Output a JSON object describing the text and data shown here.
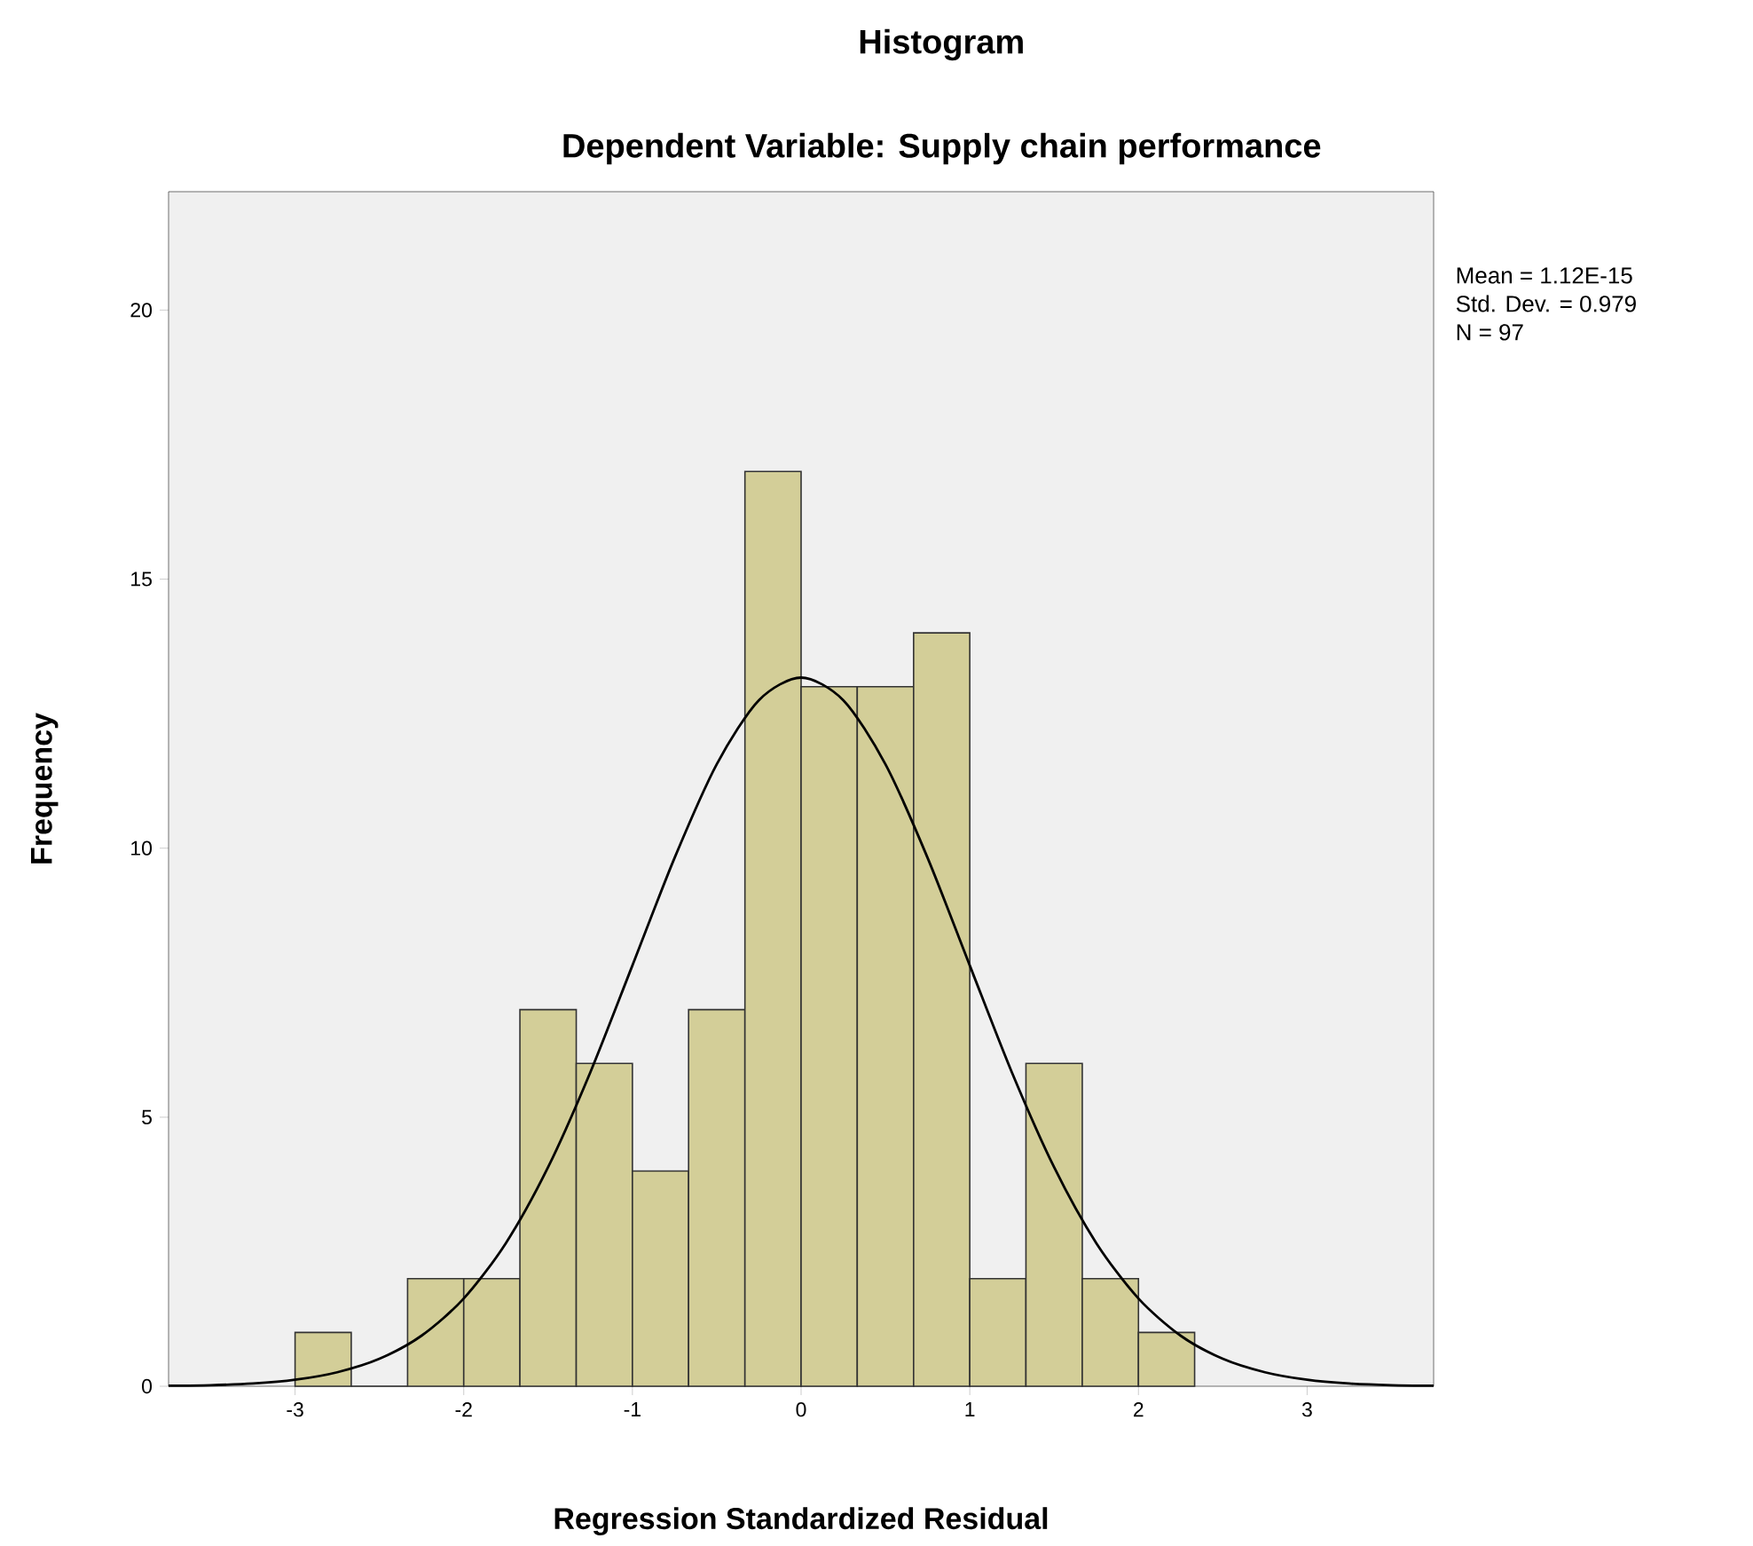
{
  "chart_data": {
    "type": "histogram",
    "title": "Histogram",
    "subtitle": "Dependent Variable: Supply chain performance",
    "xlabel": "Regression Standardized Residual",
    "ylabel": "Frequency",
    "annotations": [
      "Mean = 1.12E-15",
      "Std. Dev. = 0.979",
      "N = 97"
    ],
    "bins": [
      -3,
      -2.667,
      -2.333,
      -2,
      -1.667,
      -1.333,
      -1,
      -0.667,
      -0.333,
      0,
      0.333,
      0.667,
      1,
      1.333,
      1.667,
      2,
      2.333
    ],
    "values": [
      1,
      0,
      2,
      2,
      7,
      6,
      4,
      7,
      17,
      13,
      13,
      14,
      2,
      6,
      2,
      1
    ],
    "color": "#d3ce98",
    "series": [
      {
        "type": "line",
        "color": "#000000",
        "x": [
          -3.75,
          -3.5,
          -3.25,
          -3,
          -2.75,
          -2.5,
          -2.25,
          -2,
          -1.75,
          -1.5,
          -1.25,
          -1,
          -0.75,
          -0.5,
          -0.25,
          0,
          0.25,
          0.5,
          0.75,
          1,
          1.25,
          1.5,
          1.75,
          2,
          2.25,
          2.5,
          2.75,
          3,
          3.25,
          3.5,
          3.75
        ],
        "values": [
          0.01,
          0.02,
          0.05,
          0.12,
          0.26,
          0.51,
          0.94,
          1.63,
          2.66,
          4.07,
          5.83,
          7.82,
          9.82,
          11.56,
          12.75,
          13.17,
          12.75,
          11.56,
          9.82,
          7.82,
          5.83,
          4.07,
          2.66,
          1.63,
          0.94,
          0.51,
          0.26,
          0.12,
          0.05,
          0.02,
          0.01
        ]
      }
    ],
    "xlim": [
      -3.75,
      3.75
    ],
    "ylim": [
      0,
      22.2
    ],
    "xticks": [
      -3,
      -2,
      -1,
      0,
      1,
      2,
      3
    ],
    "yticks": [
      0,
      5,
      10,
      15,
      20
    ]
  }
}
